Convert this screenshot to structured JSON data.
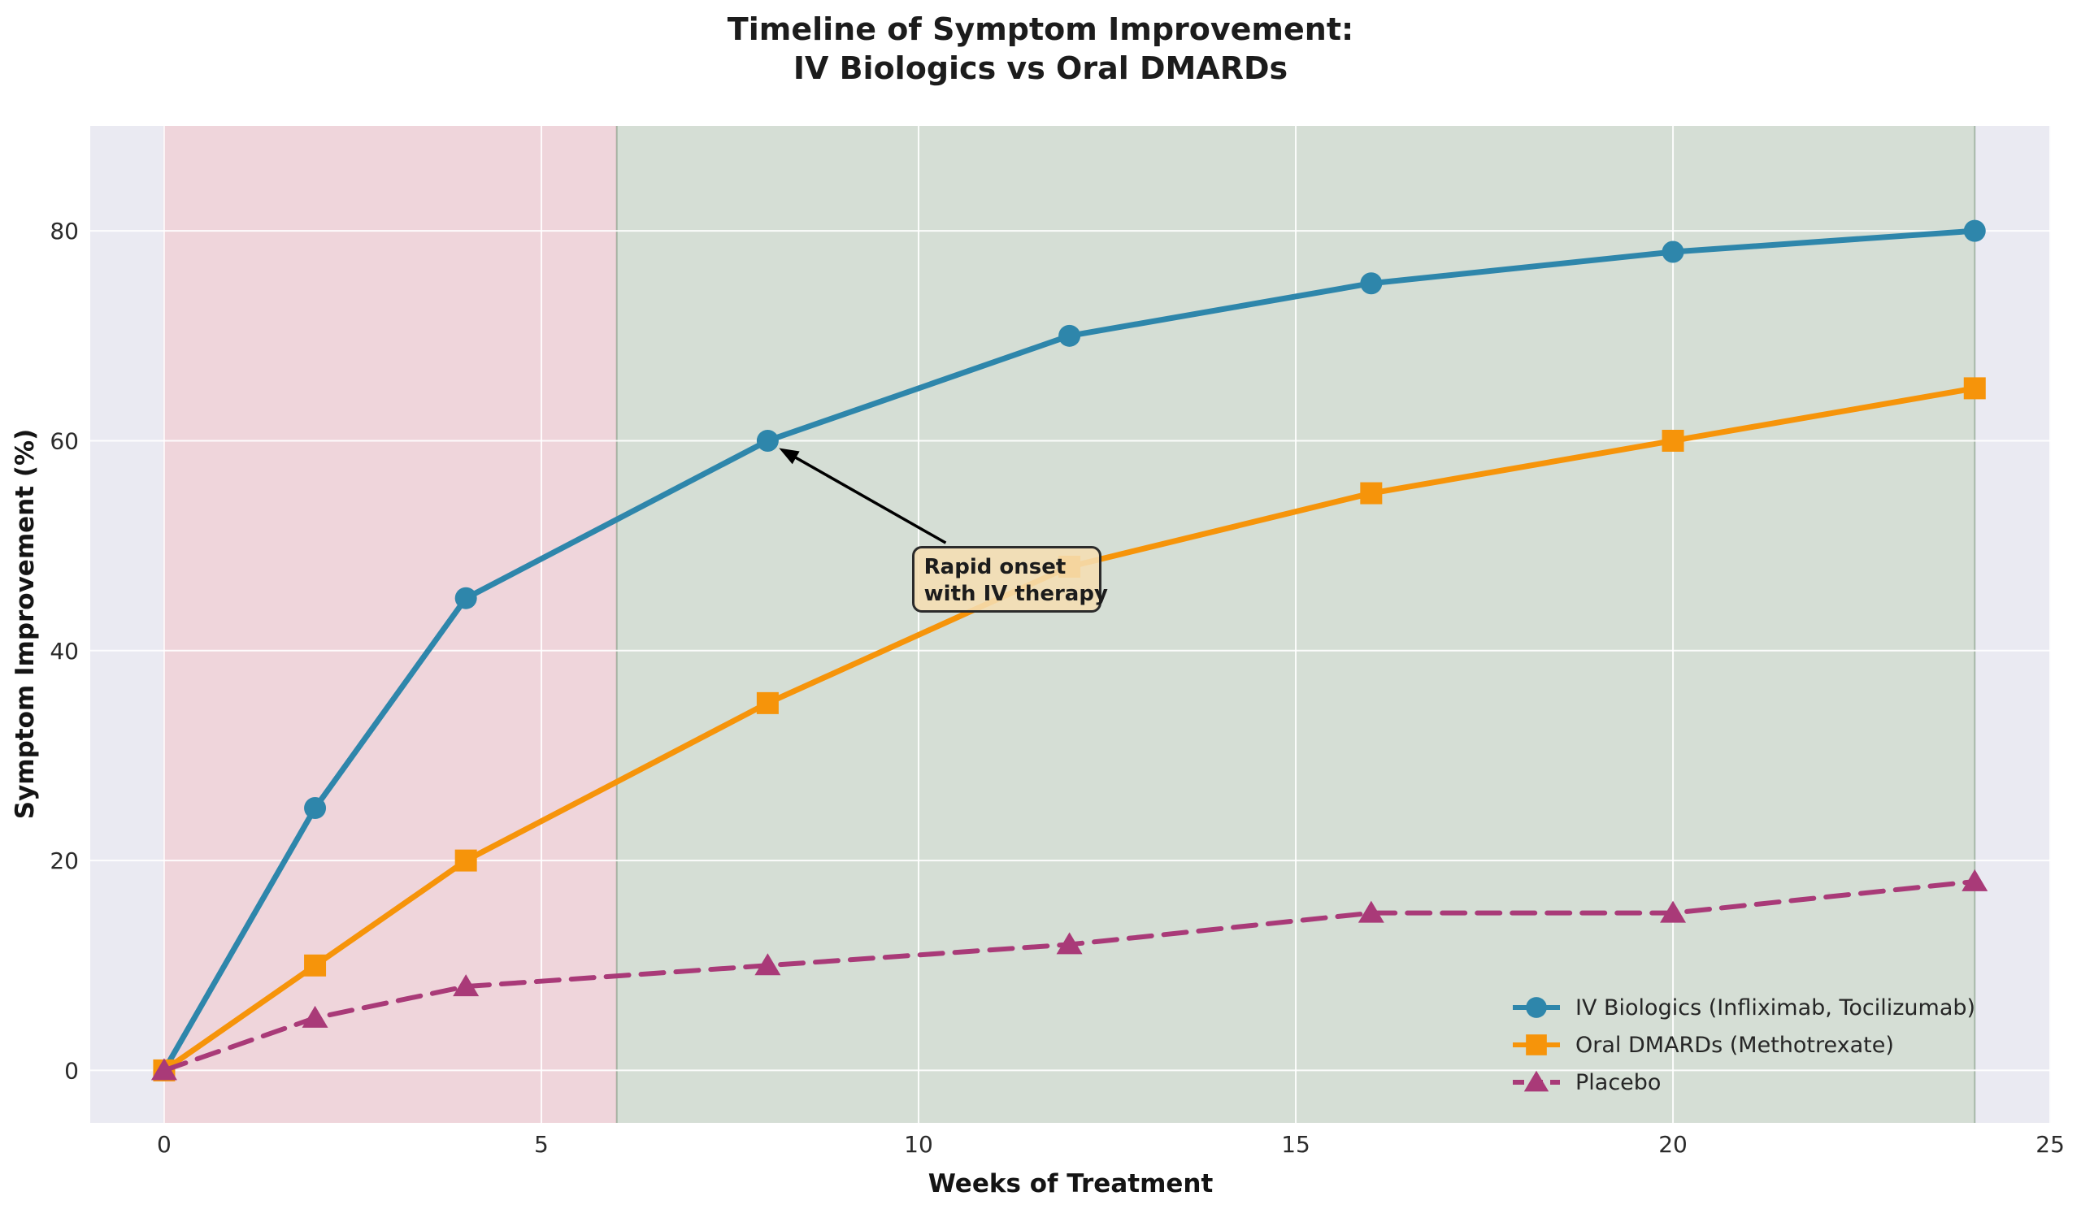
{
  "title": {
    "line1": "Timeline of Symptom Improvement:",
    "line2": "IV Biologics vs Oral DMARDs"
  },
  "chart_data": {
    "type": "line",
    "x": [
      0,
      2,
      4,
      8,
      12,
      16,
      20,
      24
    ],
    "series": [
      {
        "id": "iv-biologics",
        "name": "IV Biologics (Infliximab, Tocilizumab)",
        "values": [
          0,
          25,
          45,
          60,
          70,
          75,
          78,
          80
        ],
        "color": "#2E86AB",
        "marker": "circle",
        "dash": null
      },
      {
        "id": "oral-dmards",
        "name": "Oral DMARDs (Methotrexate)",
        "values": [
          0,
          10,
          20,
          35,
          48,
          55,
          60,
          65
        ],
        "color": "#F6940A",
        "marker": "square",
        "dash": null
      },
      {
        "id": "placebo",
        "name": "Placebo",
        "values": [
          0,
          5,
          8,
          10,
          12,
          15,
          15,
          18
        ],
        "color": "#A93A78",
        "marker": "triangle",
        "dash": "28 15"
      }
    ],
    "xlabel": "Weeks of Treatment",
    "ylabel": "Symptom Improvement (%)",
    "xticks": [
      0,
      5,
      10,
      15,
      20,
      25
    ],
    "yticks": [
      0,
      20,
      40,
      60,
      80
    ],
    "xlim": [
      -0.98,
      25.01
    ],
    "ylim": [
      -5,
      90
    ],
    "grid": true,
    "legend_position": "lower right",
    "plot_bg": "#EAEAF2",
    "grid_color": "rgba(255,255,255,0.9)",
    "spans": [
      {
        "name": "early-phase",
        "from": 0,
        "to": 6,
        "color": "#EFD5DB",
        "edge": "rgba(223,158,170,0.85)"
      },
      {
        "name": "late-phase",
        "from": 6,
        "to": 24,
        "color": "#D5DED5",
        "edge": "rgba(158,176,158,0.85)"
      }
    ],
    "annotation": {
      "line1": "Rapid onset",
      "line2": "with IV therapy",
      "target_point": {
        "week": 8,
        "value": 60
      },
      "box_xy": [
        9.91,
        49.97
      ],
      "arrow_from": [
        10.36,
        50.27
      ],
      "arrow_to": [
        8.15,
        59.3
      ],
      "arrow_color": "#000000"
    }
  }
}
